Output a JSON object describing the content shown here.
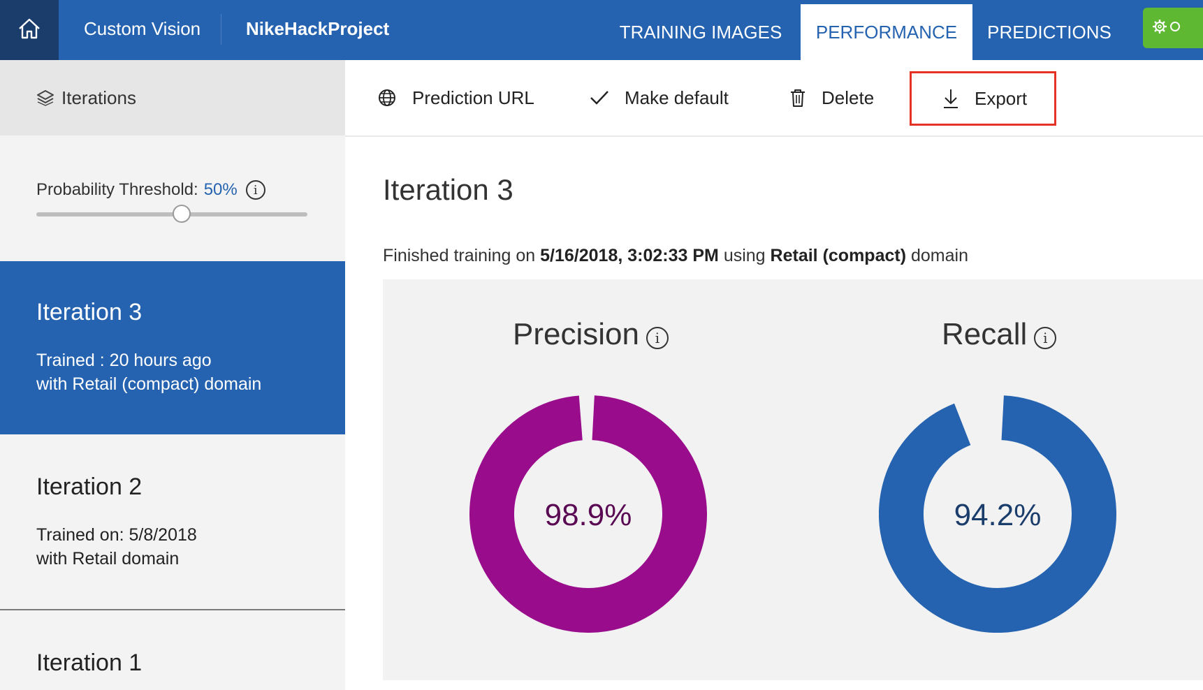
{
  "header": {
    "brand": "Custom Vision",
    "project": "NikeHackProject",
    "tabs": [
      "TRAINING IMAGES",
      "PERFORMANCE",
      "PREDICTIONS"
    ],
    "active_tab": "PERFORMANCE"
  },
  "sidebar": {
    "header": "Iterations",
    "threshold_label": "Probability Threshold:",
    "threshold_value": "50%",
    "threshold_fraction": 0.5,
    "iterations": [
      {
        "title": "Iteration 3",
        "line1": "Trained : 20 hours ago",
        "line2": "with Retail (compact) domain",
        "selected": true
      },
      {
        "title": "Iteration 2",
        "line1": "Trained on: 5/8/2018",
        "line2": "with Retail domain",
        "selected": false
      },
      {
        "title": "Iteration 1",
        "line1": "",
        "line2": "",
        "selected": false
      }
    ]
  },
  "toolbar": {
    "prediction_url": "Prediction URL",
    "make_default": "Make default",
    "delete": "Delete",
    "export": "Export"
  },
  "main": {
    "title": "Iteration 3",
    "finished_prefix": "Finished training on ",
    "finished_date": "5/16/2018, 3:02:33 PM",
    "finished_mid": " using ",
    "finished_domain": "Retail (compact)",
    "finished_suffix": " domain",
    "precision": {
      "label": "Precision",
      "value": 98.9,
      "display": "98.9%",
      "color": "#990d8c",
      "text_color": "#5a0a52"
    },
    "recall": {
      "label": "Recall",
      "value": 94.2,
      "display": "94.2%",
      "color": "#2563b0",
      "text_color": "#1b3d6b"
    }
  },
  "colors": {
    "header_blue": "#2563b0",
    "home_dark": "#1b3d6b",
    "settings_green": "#5fb832",
    "export_highlight": "#e53226"
  },
  "icons": [
    "home-icon",
    "layers-icon",
    "info-icon",
    "globe-icon",
    "checkmark-icon",
    "trash-icon",
    "download-icon",
    "gear-icon"
  ]
}
